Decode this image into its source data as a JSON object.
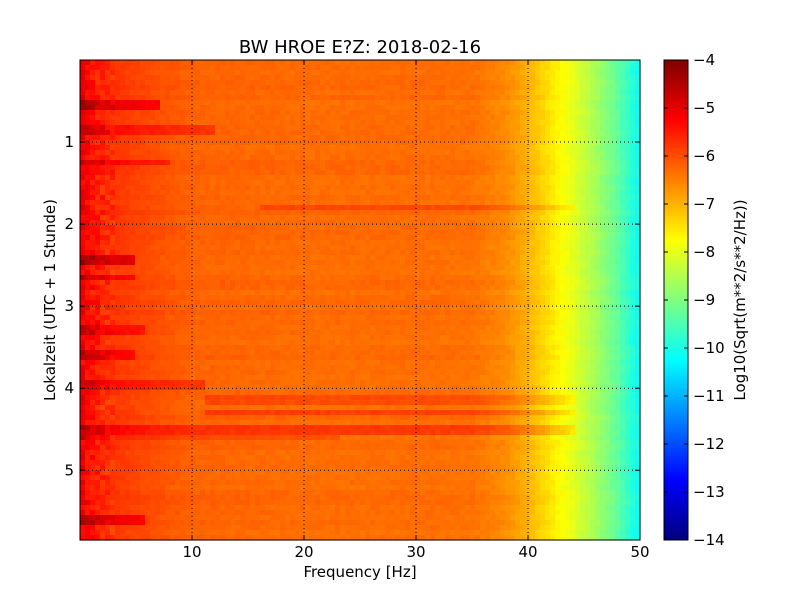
{
  "chart_data": {
    "type": "heatmap",
    "title": "BW HROE E?Z: 2018-02-16",
    "xlabel": "Frequency [Hz]",
    "ylabel": "Lokalzeit (UTC + 1 Stunde)",
    "colorbar_label": "Log10(Sqrt(m**2/s**2/Hz))",
    "xlim": [
      0,
      50
    ],
    "ylim": [
      5.85,
      0
    ],
    "x_ticks": [
      10,
      20,
      30,
      40,
      50
    ],
    "x_tick_labels": [
      "10",
      "20",
      "30",
      "40",
      "50"
    ],
    "y_ticks": [
      1,
      2,
      3,
      4,
      5
    ],
    "y_tick_labels": [
      "1",
      "2",
      "3",
      "4",
      "5"
    ],
    "colorbar_range": [
      -14,
      -4
    ],
    "colorbar_ticks": [
      -4,
      -5,
      -6,
      -7,
      -8,
      -9,
      -10,
      -11,
      -12,
      -13,
      -14
    ],
    "colorbar_tick_labels": [
      "−4",
      "−5",
      "−6",
      "−7",
      "−8",
      "−9",
      "−10",
      "−11",
      "−12",
      "−13",
      "−14"
    ],
    "colormap": "jet",
    "grid": "dotted",
    "frequency_profile": {
      "frequency_hz": [
        0,
        0.5,
        1,
        2,
        3,
        5,
        10,
        20,
        30,
        35,
        38,
        40,
        42,
        44,
        46,
        48,
        50
      ],
      "log10_amplitude": [
        -5.0,
        -5.2,
        -5.4,
        -5.6,
        -5.75,
        -5.9,
        -6.2,
        -6.3,
        -6.3,
        -6.35,
        -6.6,
        -7.0,
        -7.5,
        -8.0,
        -8.6,
        -9.3,
        -10.2
      ]
    },
    "bands": [
      {
        "time_h": 0.55,
        "fmin": 0,
        "fmax": 7,
        "delta": 0.8
      },
      {
        "time_h": 0.85,
        "fmin": 0,
        "fmax": 12,
        "delta": 0.45
      },
      {
        "time_h": 1.25,
        "fmin": 0,
        "fmax": 8,
        "delta": 0.45
      },
      {
        "time_h": 1.8,
        "fmin": 16,
        "fmax": 44,
        "delta": 0.35
      },
      {
        "time_h": 2.45,
        "fmin": 0,
        "fmax": 5,
        "delta": 0.9
      },
      {
        "time_h": 2.65,
        "fmin": 0,
        "fmax": 5,
        "delta": 0.6
      },
      {
        "time_h": 3.3,
        "fmin": 0,
        "fmax": 6,
        "delta": 0.5
      },
      {
        "time_h": 3.6,
        "fmin": 0,
        "fmax": 5,
        "delta": 0.5
      },
      {
        "time_h": 3.95,
        "fmin": 0,
        "fmax": 11,
        "delta": 0.45
      },
      {
        "time_h": 4.15,
        "fmin": 11,
        "fmax": 44,
        "delta": 0.35
      },
      {
        "time_h": 4.3,
        "fmin": 11,
        "fmax": 44,
        "delta": 0.45
      },
      {
        "time_h": 4.5,
        "fmin": 0,
        "fmax": 44,
        "delta": 0.5
      },
      {
        "time_h": 4.6,
        "fmin": 0,
        "fmax": 23,
        "delta": 0.3
      },
      {
        "time_h": 5.6,
        "fmin": 0,
        "fmax": 6,
        "delta": 0.7
      }
    ]
  }
}
